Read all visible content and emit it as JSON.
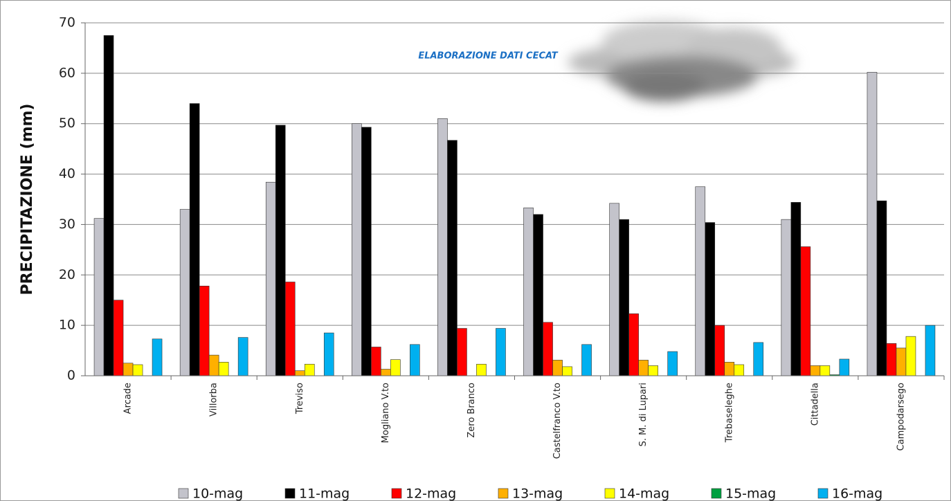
{
  "chart_data": {
    "type": "bar",
    "annotation": "ELABORAZIONE DATI CECAT",
    "ylabel": "PRECIPITAZIONE (mm)",
    "categories": [
      "Arcade",
      "Villorba",
      "Treviso",
      "Mogliano V.to",
      "Zero Branco",
      "Castelfranco V.to",
      "S. M. di Lupari",
      "Trebaseleghe",
      "Cittadella",
      "Campodarsego"
    ],
    "series": [
      {
        "name": "10-mag",
        "color": "#c3c3cb",
        "values": [
          31.2,
          33,
          38.4,
          50,
          51,
          33.3,
          34.2,
          37.5,
          31,
          60.2
        ]
      },
      {
        "name": "11-mag",
        "color": "#000000",
        "values": [
          67.5,
          54,
          49.7,
          49.3,
          46.7,
          32,
          31,
          30.4,
          34.4,
          34.7
        ]
      },
      {
        "name": "12-mag",
        "color": "#ff0000",
        "values": [
          15,
          17.8,
          18.6,
          5.7,
          9.4,
          10.6,
          12.3,
          10,
          25.6,
          6.4
        ]
      },
      {
        "name": "13-mag",
        "color": "#ffb000",
        "values": [
          2.5,
          4.1,
          1,
          1.3,
          0,
          3.1,
          3.1,
          2.7,
          2,
          5.5
        ]
      },
      {
        "name": "14-mag",
        "color": "#ffff00",
        "values": [
          2.2,
          2.7,
          2.3,
          3.2,
          2.3,
          1.8,
          2,
          2.2,
          2,
          7.8
        ]
      },
      {
        "name": "15-mag",
        "color": "#00a040",
        "values": [
          0,
          0,
          0,
          0,
          0,
          0,
          0,
          0,
          0.2,
          0
        ]
      },
      {
        "name": "16-mag",
        "color": "#00b0f0",
        "values": [
          7.3,
          7.6,
          8.5,
          6.2,
          9.4,
          6.2,
          4.8,
          6.6,
          3.3,
          10
        ]
      }
    ],
    "ylim": [
      0,
      70
    ],
    "yticks": [
      0,
      10,
      20,
      30,
      40,
      50,
      60,
      70
    ],
    "grid": true,
    "legend": "bottom"
  }
}
